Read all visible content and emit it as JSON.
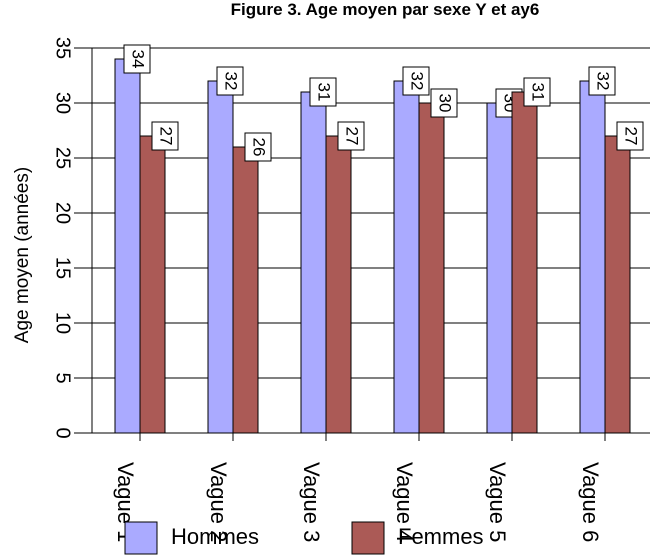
{
  "chart_data": {
    "type": "bar",
    "title": "Figure 3. Age moyen par sexe Y et ay6",
    "xlabel": "",
    "ylabel": "Age moyen (années)",
    "categories": [
      "Vague 1",
      "Vague 2",
      "Vague 3",
      "Vague 4",
      "Vague 5",
      "Vague 6"
    ],
    "series": [
      {
        "name": "Hommes",
        "color": "#aaaaff",
        "values": [
          34,
          32,
          31,
          32,
          30,
          32
        ]
      },
      {
        "name": "Femmes",
        "color": "#ab5a56",
        "values": [
          27,
          26,
          27,
          30,
          31,
          27
        ]
      }
    ],
    "data_labels": [
      [
        "34",
        "32",
        "31",
        "32",
        "30",
        "32"
      ],
      [
        "27",
        "26",
        "27",
        "30",
        "31",
        "27"
      ]
    ],
    "yticks": [
      "0",
      "5",
      "10",
      "15",
      "20",
      "25",
      "30",
      "35"
    ],
    "ylim": [
      0,
      35
    ],
    "grid": true,
    "legend_position": "bottom"
  }
}
